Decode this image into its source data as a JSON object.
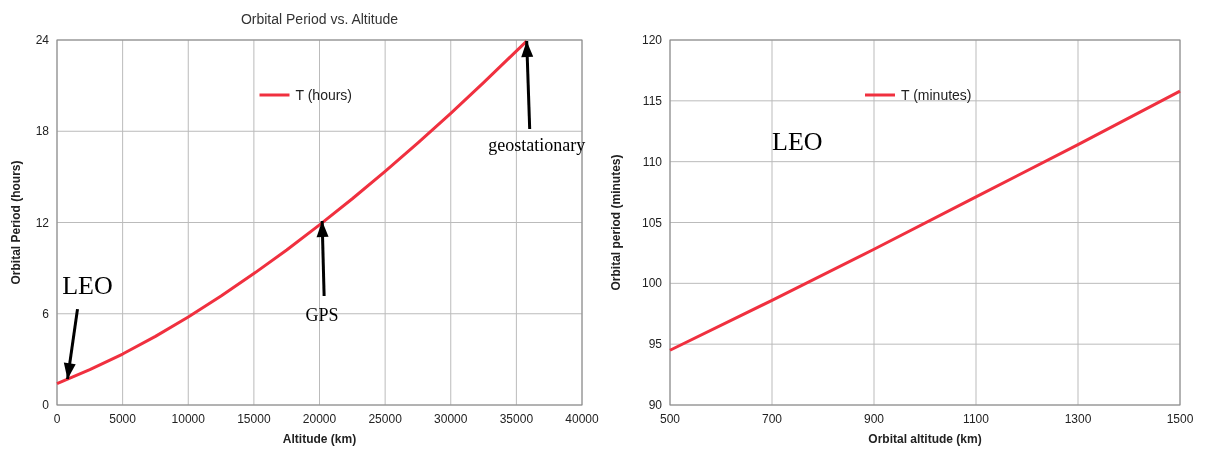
{
  "chart_data": [
    {
      "type": "line",
      "title": "Orbital Period vs. Altitude",
      "xlabel": "Altitude (km)",
      "ylabel": "Orbital Period (hours)",
      "x": [
        0,
        2500,
        5000,
        7500,
        10000,
        12500,
        15000,
        17500,
        20000,
        22500,
        25000,
        27500,
        30000,
        32500,
        35786
      ],
      "series": [
        {
          "name": "T (hours)",
          "color": "#f0303f",
          "values": [
            1.41,
            2.33,
            3.35,
            4.51,
            5.79,
            7.16,
            8.64,
            10.19,
            11.84,
            13.56,
            15.36,
            17.24,
            19.18,
            21.2,
            23.93
          ]
        }
      ],
      "xlim": [
        0,
        40000
      ],
      "xticks": [
        0,
        5000,
        10000,
        15000,
        20000,
        25000,
        30000,
        35000,
        40000
      ],
      "ylim": [
        0,
        24
      ],
      "yticks": [
        0,
        6,
        12,
        18,
        24
      ],
      "grid": true,
      "legend": "top",
      "marker": "none",
      "annotations": [
        {
          "text": "LEO",
          "x": 800,
          "y": 1.7
        },
        {
          "text": "GPS",
          "x": 20200,
          "y": 12.1
        },
        {
          "text": "geostationary",
          "x": 35786,
          "y": 23.93
        }
      ]
    },
    {
      "type": "line",
      "xlabel": "Orbital altitude (km)",
      "ylabel": "Orbital period (minutes)",
      "x": [
        500,
        700,
        900,
        1100,
        1300,
        1500
      ],
      "series": [
        {
          "name": "T (minutes)",
          "color": "#f0303f",
          "values": [
            94.5,
            98.6,
            102.8,
            107.1,
            111.4,
            115.8
          ]
        }
      ],
      "xlim": [
        500,
        1500
      ],
      "xticks": [
        500,
        700,
        900,
        1100,
        1300,
        1500
      ],
      "ylim": [
        90,
        120
      ],
      "yticks": [
        90,
        95,
        100,
        105,
        110,
        115,
        120
      ],
      "grid": true,
      "legend": "top",
      "marker": "none",
      "annotations": [
        "LEO"
      ]
    }
  ]
}
